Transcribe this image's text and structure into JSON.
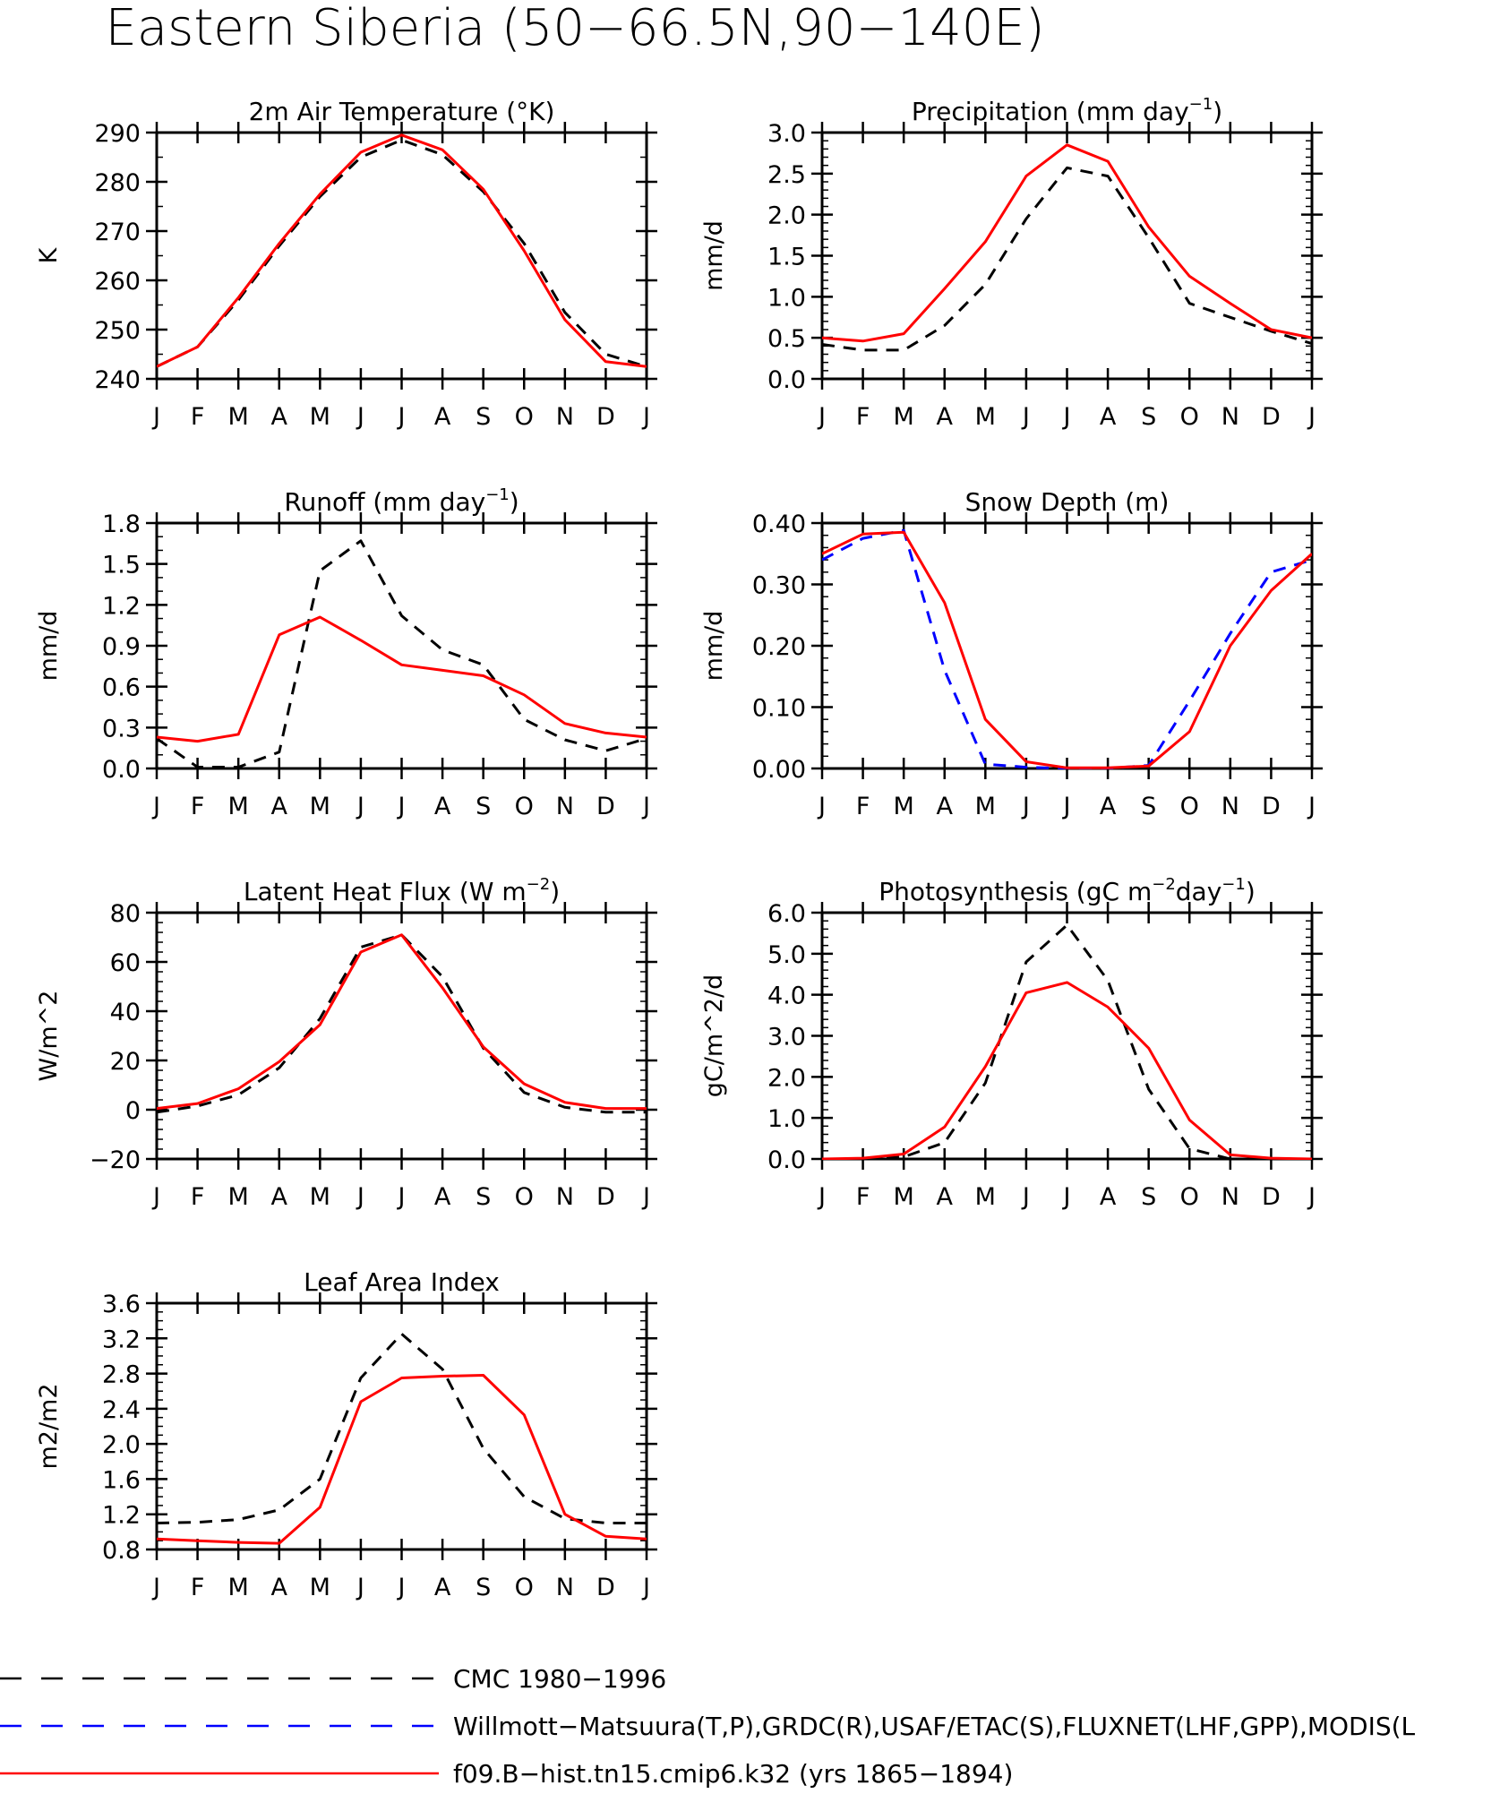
{
  "figure": {
    "title": "Eastern Siberia (50−66.5N,90−140E)"
  },
  "months": [
    "J",
    "F",
    "M",
    "A",
    "M",
    "J",
    "J",
    "A",
    "S",
    "O",
    "N",
    "D",
    "J"
  ],
  "colors": {
    "cmc": "#000000",
    "obs": "#0000ff",
    "model": "#ff0000",
    "axis": "#000000"
  },
  "legend": [
    {
      "label": "CMC 1980−1996",
      "color": "#000000",
      "dash": true
    },
    {
      "label": "Willmott−Matsuura(T,P),GRDC(R),USAF/ETAC(S),FLUXNET(LHF,GPP),MODIS(L",
      "color": "#0000ff",
      "dash": true
    },
    {
      "label": "f09.B−hist.tn15.cmip6.k32 (yrs 1865−1894)",
      "color": "#ff0000",
      "dash": false
    }
  ],
  "chart_data": [
    {
      "type": "line",
      "title": "2m Air Temperature (°K)",
      "title_parts": [
        "2m Air Temperature (°K)"
      ],
      "ylabel": "K",
      "ylim": [
        240,
        290
      ],
      "yticks": [
        240,
        250,
        260,
        270,
        280,
        290
      ],
      "ytick_labels": [
        "240",
        "250",
        "260",
        "270",
        "280",
        "290"
      ],
      "y_minor": 5,
      "series": [
        {
          "name": "CMC 1980−1996",
          "style": "cmc",
          "values": [
            242.5,
            246.5,
            256.0,
            267.0,
            277.0,
            285.0,
            288.5,
            285.5,
            278.0,
            267.5,
            253.5,
            245.0,
            242.5
          ]
        },
        {
          "name": "f09.B−hist.tn15.cmip6.k32 (yrs 1865−1894)",
          "style": "model",
          "values": [
            242.5,
            246.5,
            256.5,
            267.5,
            277.5,
            286.0,
            289.5,
            286.5,
            278.5,
            266.0,
            252.0,
            243.5,
            242.5
          ]
        }
      ]
    },
    {
      "type": "line",
      "title": "Precipitation (mm day⁻¹)",
      "title_parts": [
        "Precipitation (mm day",
        "−1",
        ")"
      ],
      "ylabel": "mm/d",
      "ylim": [
        0.0,
        3.0
      ],
      "yticks": [
        0.0,
        0.5,
        1.0,
        1.5,
        2.0,
        2.5,
        3.0
      ],
      "ytick_labels": [
        "0.0",
        "0.5",
        "1.0",
        "1.5",
        "2.0",
        "2.5",
        "3.0"
      ],
      "y_minor": 0.1,
      "series": [
        {
          "name": "CMC 1980−1996",
          "style": "cmc",
          "values": [
            0.42,
            0.35,
            0.35,
            0.65,
            1.15,
            1.95,
            2.57,
            2.47,
            1.72,
            0.92,
            0.75,
            0.58,
            0.43
          ]
        },
        {
          "name": "f09.B−hist.tn15.cmip6.k32 (yrs 1865−1894)",
          "style": "model",
          "values": [
            0.5,
            0.46,
            0.55,
            1.1,
            1.67,
            2.47,
            2.85,
            2.65,
            1.85,
            1.25,
            0.92,
            0.6,
            0.5
          ]
        }
      ]
    },
    {
      "type": "line",
      "title": "Runoff (mm day⁻¹)",
      "title_parts": [
        "Runoff (mm day",
        "−1",
        ")"
      ],
      "ylabel": "mm/d",
      "ylim": [
        0.0,
        1.8
      ],
      "yticks": [
        0.0,
        0.3,
        0.6,
        0.9,
        1.2,
        1.5,
        1.8
      ],
      "ytick_labels": [
        "0.0",
        "0.3",
        "0.6",
        "0.9",
        "1.2",
        "1.5",
        "1.8"
      ],
      "y_minor": 0.1,
      "series": [
        {
          "name": "CMC 1980−1996",
          "style": "cmc",
          "values": [
            0.22,
            0.01,
            0.01,
            0.12,
            1.45,
            1.67,
            1.12,
            0.87,
            0.76,
            0.36,
            0.21,
            0.13,
            0.22
          ]
        },
        {
          "name": "f09.B−hist.tn15.cmip6.k32 (yrs 1865−1894)",
          "style": "model",
          "values": [
            0.23,
            0.2,
            0.25,
            0.98,
            1.11,
            0.94,
            0.76,
            0.72,
            0.68,
            0.54,
            0.33,
            0.26,
            0.23
          ]
        }
      ]
    },
    {
      "type": "line",
      "title": "Snow Depth (m)",
      "title_parts": [
        "Snow Depth (m)"
      ],
      "ylabel": "mm/d",
      "ylim": [
        0.0,
        0.4
      ],
      "yticks": [
        0.0,
        0.1,
        0.2,
        0.3,
        0.4
      ],
      "ytick_labels": [
        "0.00",
        "0.10",
        "0.20",
        "0.30",
        "0.40"
      ],
      "y_minor": 0.02,
      "series": [
        {
          "name": "CMC 1980−1996",
          "style": "cmc",
          "values": [
            0.0,
            0.0,
            0.0,
            0.0,
            0.0,
            0.0,
            0.0,
            0.0,
            0.0,
            0.0,
            0.0,
            0.0,
            0.0
          ]
        },
        {
          "name": "Willmott−Matsuura(T,P),GRDC(R),USAF/ETAC(S),FLUXNET(LHF,GPP),MODIS(L",
          "style": "obs",
          "values": [
            0.34,
            0.375,
            0.388,
            0.16,
            0.007,
            0.002,
            0.0,
            0.0,
            0.005,
            0.11,
            0.22,
            0.32,
            0.34
          ]
        },
        {
          "name": "f09.B−hist.tn15.cmip6.k32 (yrs 1865−1894)",
          "style": "model",
          "values": [
            0.35,
            0.382,
            0.385,
            0.27,
            0.08,
            0.011,
            0.001,
            0.001,
            0.004,
            0.06,
            0.2,
            0.29,
            0.35
          ]
        }
      ]
    },
    {
      "type": "line",
      "title": "Latent Heat Flux (W m⁻²)",
      "title_parts": [
        "Latent Heat Flux (W m",
        "−2",
        ")"
      ],
      "ylabel": "W/m^2",
      "ylim": [
        -20,
        80
      ],
      "yticks": [
        -20,
        0,
        20,
        40,
        60,
        80
      ],
      "ytick_labels": [
        "−20",
        "0",
        "20",
        "40",
        "60",
        "80"
      ],
      "y_minor": 4,
      "series": [
        {
          "name": "CMC 1980−1996",
          "style": "cmc",
          "values": [
            -1,
            1.5,
            6,
            17,
            37,
            66,
            71,
            54,
            25,
            7,
            1,
            -1,
            -1
          ]
        },
        {
          "name": "f09.B−hist.tn15.cmip6.k32 (yrs 1865−1894)",
          "style": "model",
          "values": [
            0.5,
            2.5,
            8.5,
            19.5,
            34.5,
            64,
            71,
            49.5,
            25.5,
            10.5,
            3,
            0.5,
            0.5
          ]
        }
      ]
    },
    {
      "type": "line",
      "title": "Photosynthesis (gC m⁻²day⁻¹)",
      "title_parts": [
        "Photosynthesis (gC m",
        "−2",
        "day",
        "−1",
        ")"
      ],
      "ylabel": "gC/m^2/d",
      "ylim": [
        0.0,
        6.0
      ],
      "yticks": [
        0,
        1,
        2,
        3,
        4,
        5,
        6
      ],
      "ytick_labels": [
        "0.0",
        "1.0",
        "2.0",
        "3.0",
        "4.0",
        "5.0",
        "6.0"
      ],
      "y_minor": 0.2,
      "series": [
        {
          "name": "CMC 1980−1996",
          "style": "cmc",
          "values": [
            0,
            0,
            0.05,
            0.4,
            1.85,
            4.8,
            5.7,
            4.35,
            1.7,
            0.25,
            0.0,
            0,
            0
          ]
        },
        {
          "name": "f09.B−hist.tn15.cmip6.k32 (yrs 1865−1894)",
          "style": "model",
          "values": [
            0,
            0.02,
            0.12,
            0.78,
            2.25,
            4.05,
            4.3,
            3.7,
            2.7,
            0.95,
            0.1,
            0.02,
            0
          ]
        }
      ]
    },
    {
      "type": "line",
      "title": "Leaf Area Index",
      "title_parts": [
        "Leaf Area Index"
      ],
      "ylabel": "m2/m2",
      "ylim": [
        0.8,
        3.6
      ],
      "yticks": [
        0.8,
        1.2,
        1.6,
        2.0,
        2.4,
        2.8,
        3.2,
        3.6
      ],
      "ytick_labels": [
        "0.8",
        "1.2",
        "1.6",
        "2.0",
        "2.4",
        "2.8",
        "3.2",
        "3.6"
      ],
      "y_minor": 0.1,
      "series": [
        {
          "name": "CMC 1980−1996",
          "style": "cmc",
          "values": [
            1.1,
            1.11,
            1.14,
            1.25,
            1.6,
            2.75,
            3.25,
            2.85,
            1.95,
            1.4,
            1.15,
            1.1,
            1.1
          ]
        },
        {
          "name": "f09.B−hist.tn15.cmip6.k32 (yrs 1865−1894)",
          "style": "model",
          "values": [
            0.92,
            0.9,
            0.88,
            0.87,
            1.28,
            2.48,
            2.75,
            2.77,
            2.78,
            2.33,
            1.2,
            0.95,
            0.92
          ]
        }
      ]
    }
  ]
}
